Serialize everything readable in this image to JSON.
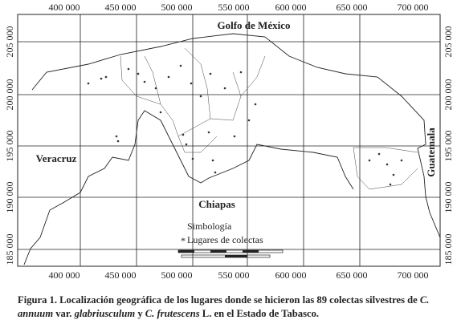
{
  "map": {
    "x_labels_top": [
      "400 000",
      "450 000",
      "500 000",
      "550 000",
      "600 000",
      "650 000",
      "700 000"
    ],
    "x_labels_bottom": [
      "400 000",
      "450 000",
      "500 000",
      "550 000",
      "600 000",
      "650 000",
      "700 000"
    ],
    "y_labels_left": [
      "205 000",
      "200 000",
      "195 000",
      "190 000",
      "185 000"
    ],
    "y_labels_right": [
      "205 000",
      "200 000",
      "195 000",
      "190 000",
      "185 000"
    ],
    "places": {
      "gulf": "Golfo de México",
      "west": "Veracruz",
      "south": "Chiapas",
      "east": "Guatemala"
    },
    "legend": {
      "title": "Simbología",
      "item": "Lugares de colectas"
    }
  },
  "caption": [
    {
      "text": "Figura 1. Localización geográfica de los lugares donde se hicieron las 89 colectas silvestres de ",
      "italic": false
    },
    {
      "text": "C. annuum",
      "italic": true
    },
    {
      "text": " var. ",
      "italic": false
    },
    {
      "text": "glabriusculum",
      "italic": true
    },
    {
      "text": " y ",
      "italic": false
    },
    {
      "text": "C. frutescens",
      "italic": true
    },
    {
      "text": " L. en el Estado de Tabasco.",
      "italic": false
    }
  ]
}
